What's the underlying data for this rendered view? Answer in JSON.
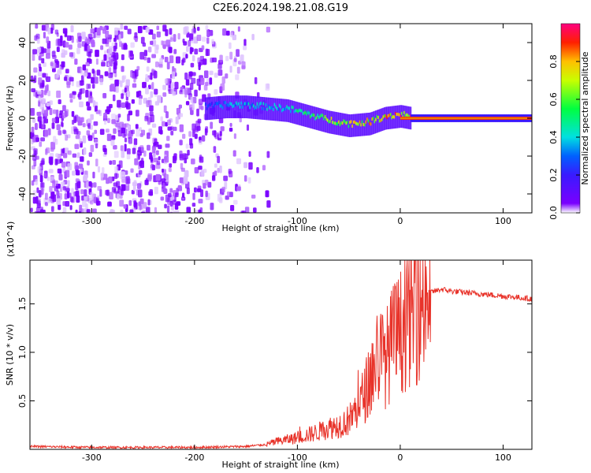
{
  "title": "C2E6.2024.198.21.08.G19",
  "chart_data": [
    {
      "type": "heatmap",
      "xlabel": "Height of straight line (km)",
      "ylabel": "Frequency (Hz)",
      "xlim": [
        -360,
        128
      ],
      "ylim": [
        -50,
        50
      ],
      "x_ticks": [
        -300,
        -200,
        -100,
        0,
        100
      ],
      "y_ticks": [
        -40,
        -20,
        0,
        20,
        40
      ],
      "colorbar": {
        "label": "Normalized spectral amplitude",
        "range": [
          0,
          1
        ],
        "ticks": [
          0.0,
          0.2,
          0.4,
          0.6,
          0.8
        ]
      },
      "ridge": {
        "description_points_x": [
          -190,
          -170,
          -150,
          -130,
          -110,
          -90,
          -70,
          -50,
          -30,
          -15,
          0,
          10,
          128
        ],
        "frequency": [
          5,
          6,
          6,
          5,
          4,
          1,
          -2,
          -4,
          -3,
          0,
          1,
          0,
          0
        ],
        "amplitude": [
          0.3,
          0.4,
          0.45,
          0.45,
          0.5,
          0.6,
          0.75,
          0.85,
          0.9,
          0.95,
          1.0,
          1.0,
          0.95
        ]
      },
      "noise_region_x": [
        -360,
        -130
      ]
    },
    {
      "type": "line",
      "xlabel": "Height of straight line (km)",
      "ylabel": "SNR (10 * v/v)",
      "y_multiplier": "(x10^4)",
      "xlim": [
        -360,
        128
      ],
      "ylim": [
        0,
        1.95
      ],
      "x_ticks": [
        -300,
        -200,
        -100,
        0,
        100
      ],
      "y_ticks": [
        0.5,
        1.0,
        1.5
      ],
      "y_tick_labels": [
        "0.5",
        "1.0",
        "1.5"
      ],
      "series": [
        {
          "color": "#e8332a",
          "x": [
            -360,
            -300,
            -250,
            -200,
            -150,
            -130,
            -120,
            -110,
            -100,
            -90,
            -80,
            -70,
            -60,
            -50,
            -40,
            -30,
            -25,
            -20,
            -15,
            -10,
            -5,
            0,
            5,
            10,
            15,
            20,
            25,
            30,
            40,
            50,
            60,
            80,
            100,
            110,
            120,
            128
          ],
          "y": [
            0.03,
            0.02,
            0.02,
            0.02,
            0.03,
            0.05,
            0.08,
            0.1,
            0.12,
            0.15,
            0.18,
            0.22,
            0.25,
            0.3,
            0.45,
            0.7,
            0.85,
            1.0,
            0.9,
            1.05,
            1.15,
            1.2,
            1.3,
            1.4,
            1.45,
            1.52,
            1.58,
            1.62,
            1.65,
            1.63,
            1.62,
            1.6,
            1.58,
            1.57,
            1.56,
            1.55
          ]
        }
      ]
    }
  ]
}
